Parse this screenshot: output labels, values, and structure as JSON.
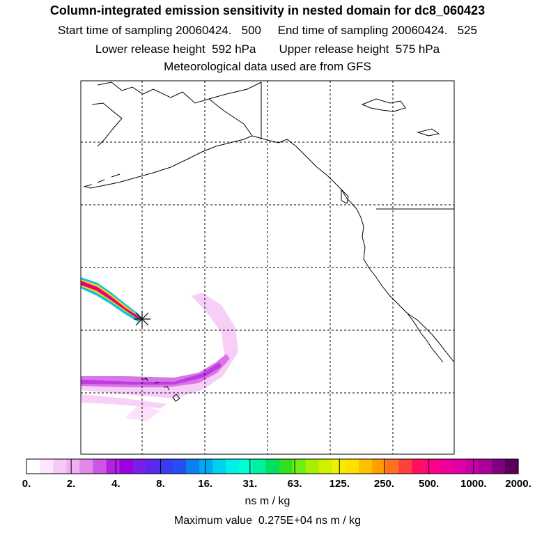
{
  "header": {
    "title": "Column-integrated emission sensitivity in nested domain for dc8_060423",
    "line1": "Start time of sampling 20060424.   500     End time of sampling 20060424.   525",
    "line2": "Lower release height  592 hPa       Upper release height  575 hPa",
    "line3": "Meteorological data used are from GFS"
  },
  "colorbar": {
    "tick_labels": [
      "0.",
      "2.",
      "4.",
      "8.",
      "16.",
      "31.",
      "63.",
      "125.",
      "250.",
      "500.",
      "1000.",
      "2000."
    ],
    "colors": [
      "#ffffff",
      "#fde6fd",
      "#f7c9f7",
      "#f2aef2",
      "#e088e8",
      "#cc55e6",
      "#b022e0",
      "#9a00e0",
      "#7a1ee8",
      "#5a28ee",
      "#3a3af2",
      "#2250f5",
      "#0a80f0",
      "#00a8f0",
      "#00d0f0",
      "#00f0e8",
      "#00ffd0",
      "#00f0a0",
      "#00e060",
      "#30e020",
      "#70ee10",
      "#a8f000",
      "#d0f000",
      "#f0f000",
      "#ffe000",
      "#ffc000",
      "#ffa000",
      "#ff7020",
      "#ff4040",
      "#ff1060",
      "#ff0088",
      "#f00098",
      "#e000a8",
      "#c800a8",
      "#a80098",
      "#800080",
      "#5a0058"
    ],
    "units": "ns m / kg"
  },
  "footer": {
    "max_value": "Maximum value  0.275E+04 ns m / kg"
  },
  "map": {
    "grid_line_color": "#000000",
    "release_marker": "asterisk-icon",
    "plume_colors": {
      "core": "#e0008a",
      "outer": "#00c8e0",
      "mid": "#ffd000",
      "faint": "#f0a8f0",
      "medium": "#cc55e6"
    }
  }
}
